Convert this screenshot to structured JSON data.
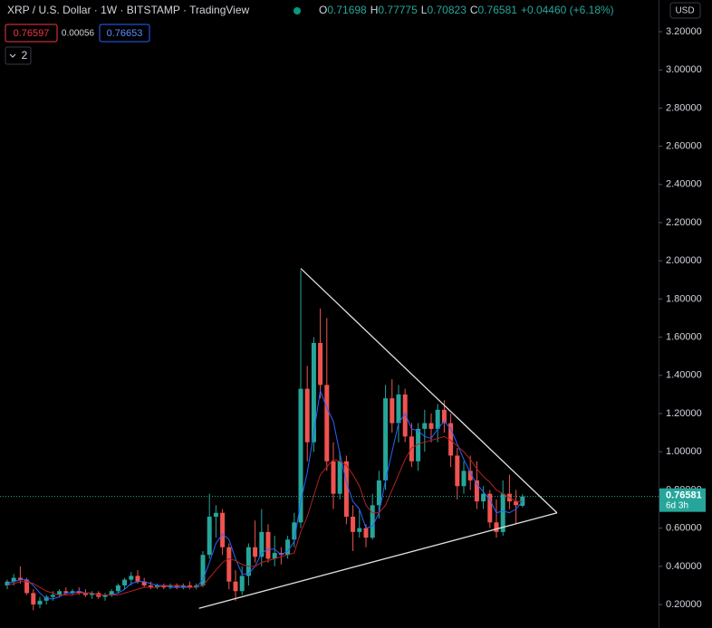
{
  "header": {
    "title": "XRP / U.S. Dollar · 1W · BITSTAMP · TradingView",
    "ohlc": [
      {
        "label": "O",
        "value": "0.71698"
      },
      {
        "label": "H",
        "value": "0.77775"
      },
      {
        "label": "L",
        "value": "0.70823"
      },
      {
        "label": "C",
        "value": "0.76581"
      }
    ],
    "change": "+0.04460 (+6.18%)",
    "sell": "0.76597",
    "spread": "0.00056",
    "buy": "0.76653",
    "indicators": "2",
    "currency": "USD"
  },
  "chart_data": {
    "type": "candlestick",
    "up_color": "#26a69a",
    "down_color": "#ef5350",
    "open": [
      0.3,
      0.32,
      0.34,
      0.33,
      0.26,
      0.2,
      0.22,
      0.24,
      0.25,
      0.27,
      0.26,
      0.27,
      0.26,
      0.25,
      0.26,
      0.24,
      0.25,
      0.27,
      0.3,
      0.33,
      0.35,
      0.32,
      0.3,
      0.29,
      0.3,
      0.29,
      0.3,
      0.29,
      0.3,
      0.29,
      0.3,
      0.46,
      0.66,
      0.68,
      0.5,
      0.32,
      0.27,
      0.35,
      0.5,
      0.45,
      0.58,
      0.44,
      0.47,
      0.46,
      0.54,
      0.63,
      1.33,
      1.05,
      1.57,
      1.35,
      0.95,
      0.78,
      0.95,
      0.66,
      0.58,
      0.6,
      0.55,
      0.72,
      0.85,
      1.28,
      1.15,
      1.3,
      1.08,
      0.95,
      1.12,
      1.15,
      1.12,
      1.22,
      1.15,
      0.98,
      0.82,
      0.9,
      0.85,
      0.74,
      0.78,
      0.63,
      0.58,
      0.78,
      0.74,
      0.71698
    ],
    "high": [
      0.33,
      0.36,
      0.4,
      0.34,
      0.28,
      0.24,
      0.25,
      0.27,
      0.28,
      0.29,
      0.28,
      0.29,
      0.28,
      0.27,
      0.27,
      0.26,
      0.28,
      0.31,
      0.34,
      0.37,
      0.38,
      0.34,
      0.32,
      0.31,
      0.31,
      0.31,
      0.31,
      0.31,
      0.32,
      0.31,
      0.48,
      0.78,
      0.72,
      0.7,
      0.52,
      0.38,
      0.4,
      0.52,
      0.64,
      0.7,
      0.62,
      0.56,
      0.5,
      0.56,
      0.68,
      1.95,
      1.45,
      1.6,
      1.75,
      1.7,
      1.05,
      1.0,
      0.98,
      0.72,
      0.7,
      0.62,
      0.78,
      0.9,
      1.35,
      1.38,
      1.35,
      1.33,
      1.15,
      1.15,
      1.22,
      1.2,
      1.25,
      1.27,
      1.2,
      1.02,
      0.95,
      0.98,
      0.95,
      0.82,
      0.8,
      0.75,
      0.85,
      0.88,
      0.8,
      0.77775
    ],
    "low": [
      0.28,
      0.3,
      0.31,
      0.25,
      0.17,
      0.18,
      0.2,
      0.22,
      0.24,
      0.25,
      0.25,
      0.25,
      0.24,
      0.23,
      0.23,
      0.22,
      0.24,
      0.26,
      0.28,
      0.3,
      0.31,
      0.29,
      0.28,
      0.28,
      0.28,
      0.28,
      0.28,
      0.28,
      0.28,
      0.28,
      0.29,
      0.44,
      0.55,
      0.46,
      0.28,
      0.22,
      0.25,
      0.3,
      0.42,
      0.4,
      0.42,
      0.4,
      0.41,
      0.44,
      0.5,
      0.6,
      0.95,
      1.0,
      1.28,
      0.9,
      0.7,
      0.75,
      0.62,
      0.48,
      0.55,
      0.5,
      0.54,
      0.65,
      0.8,
      1.1,
      1.05,
      1.05,
      0.92,
      0.9,
      1.0,
      1.05,
      1.05,
      1.1,
      0.92,
      0.75,
      0.78,
      0.8,
      0.7,
      0.7,
      0.6,
      0.55,
      0.56,
      0.7,
      0.62,
      0.70823
    ],
    "close": [
      0.32,
      0.34,
      0.33,
      0.26,
      0.2,
      0.22,
      0.24,
      0.25,
      0.27,
      0.26,
      0.27,
      0.26,
      0.25,
      0.26,
      0.24,
      0.25,
      0.27,
      0.3,
      0.33,
      0.35,
      0.32,
      0.3,
      0.29,
      0.3,
      0.29,
      0.3,
      0.29,
      0.3,
      0.29,
      0.3,
      0.46,
      0.66,
      0.68,
      0.5,
      0.32,
      0.27,
      0.35,
      0.5,
      0.45,
      0.58,
      0.44,
      0.47,
      0.46,
      0.54,
      0.63,
      1.33,
      1.05,
      1.57,
      1.35,
      0.95,
      0.78,
      0.95,
      0.66,
      0.58,
      0.6,
      0.55,
      0.72,
      0.85,
      1.28,
      1.15,
      1.3,
      1.08,
      0.95,
      1.12,
      1.15,
      1.12,
      1.22,
      1.15,
      0.98,
      0.82,
      0.9,
      0.85,
      0.74,
      0.78,
      0.63,
      0.58,
      0.78,
      0.74,
      0.72,
      0.76581
    ],
    "series": [
      {
        "type": "line",
        "color": "#2962ff",
        "values": [
          0.31,
          0.32,
          0.33,
          0.33,
          0.3,
          0.26,
          0.23,
          0.23,
          0.24,
          0.26,
          0.26,
          0.27,
          0.26,
          0.26,
          0.25,
          0.25,
          0.25,
          0.26,
          0.28,
          0.31,
          0.32,
          0.32,
          0.31,
          0.3,
          0.3,
          0.29,
          0.29,
          0.29,
          0.29,
          0.29,
          0.33,
          0.42,
          0.52,
          0.57,
          0.54,
          0.44,
          0.36,
          0.36,
          0.4,
          0.47,
          0.49,
          0.49,
          0.46,
          0.48,
          0.53,
          0.74,
          0.89,
          1.1,
          1.32,
          1.23,
          1.16,
          0.99,
          0.84,
          0.74,
          0.7,
          0.6,
          0.61,
          0.68,
          0.85,
          1.0,
          1.15,
          1.2,
          1.12,
          1.11,
          1.08,
          1.07,
          1.12,
          1.16,
          1.12,
          1.04,
          0.96,
          0.89,
          0.83,
          0.79,
          0.75,
          0.68,
          0.69,
          0.68,
          0.7,
          0.74
        ]
      },
      {
        "type": "line",
        "color": "#b22222",
        "values": [
          0.3,
          0.31,
          0.32,
          0.32,
          0.31,
          0.29,
          0.27,
          0.26,
          0.25,
          0.25,
          0.25,
          0.26,
          0.26,
          0.26,
          0.25,
          0.25,
          0.25,
          0.25,
          0.26,
          0.27,
          0.28,
          0.29,
          0.29,
          0.29,
          0.3,
          0.3,
          0.3,
          0.3,
          0.29,
          0.29,
          0.3,
          0.34,
          0.38,
          0.42,
          0.44,
          0.43,
          0.41,
          0.4,
          0.4,
          0.42,
          0.43,
          0.44,
          0.45,
          0.46,
          0.47,
          0.58,
          0.66,
          0.77,
          0.88,
          0.92,
          0.96,
          0.95,
          0.93,
          0.88,
          0.82,
          0.72,
          0.68,
          0.68,
          0.72,
          0.8,
          0.88,
          0.96,
          1.02,
          1.04,
          1.05,
          1.06,
          1.07,
          1.08,
          1.06,
          1.03,
          1.0,
          0.96,
          0.91,
          0.87,
          0.84,
          0.8,
          0.78,
          0.76,
          0.74,
          0.74
        ]
      }
    ],
    "trendlines": [
      {
        "color": "#e0e0e0",
        "x": [
          45,
          84.3
        ],
        "y": [
          1.96,
          0.68
        ]
      },
      {
        "color": "#e0e0e0",
        "x": [
          29.4,
          84.3
        ],
        "y": [
          0.18,
          0.68
        ]
      }
    ],
    "last_price": 0.76581,
    "last_price_color": "#26a69a",
    "last_price_countdown": "6d 3h",
    "ylim": [
      0.077,
      3.366
    ],
    "yticks": [
      {
        "value": 0.2,
        "label": "0.20000"
      },
      {
        "value": 0.4,
        "label": "0.40000"
      },
      {
        "value": 0.6,
        "label": "0.60000"
      },
      {
        "value": 0.8,
        "label": "0.80000"
      },
      {
        "value": 1.0,
        "label": "1.00000"
      },
      {
        "value": 1.2,
        "label": "1.20000"
      },
      {
        "value": 1.4,
        "label": "1.40000"
      },
      {
        "value": 1.6,
        "label": "1.60000"
      },
      {
        "value": 1.8,
        "label": "1.80000"
      },
      {
        "value": 2.0,
        "label": "2.00000"
      },
      {
        "value": 2.2,
        "label": "2.20000"
      },
      {
        "value": 2.4,
        "label": "2.40000"
      },
      {
        "value": 2.6,
        "label": "2.60000"
      },
      {
        "value": 2.8,
        "label": "2.80000"
      },
      {
        "value": 3.0,
        "label": "3.00000"
      },
      {
        "value": 3.2,
        "label": "3.20000"
      }
    ]
  }
}
